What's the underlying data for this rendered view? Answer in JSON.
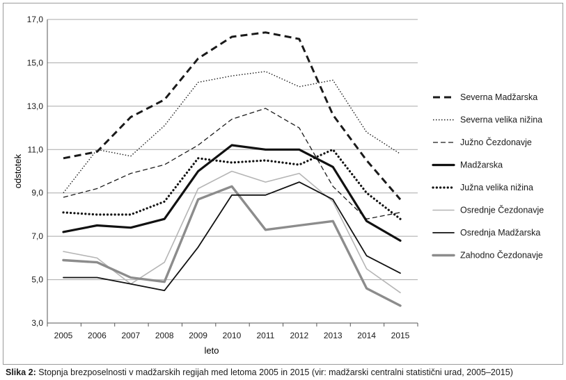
{
  "chart_data": {
    "type": "line",
    "xlabel": "leto",
    "ylabel": "odstotek",
    "ylim": [
      3.0,
      17.0
    ],
    "yticks": [
      "3,0",
      "5,0",
      "7,0",
      "9,0",
      "11,0",
      "13,0",
      "15,0",
      "17,0"
    ],
    "ytick_values": [
      3,
      5,
      7,
      9,
      11,
      13,
      15,
      17
    ],
    "x": [
      "2005",
      "2006",
      "2007",
      "2008",
      "2009",
      "2010",
      "2011",
      "2012",
      "2013",
      "2014",
      "2015"
    ],
    "grid": true,
    "legend_position": "right",
    "series": [
      {
        "name": "Severna Madžarska",
        "style": "dashed-thick",
        "color": "#1a1a1a",
        "values": [
          10.6,
          10.9,
          12.5,
          13.3,
          15.2,
          16.2,
          16.4,
          16.1,
          12.6,
          10.5,
          8.7
        ]
      },
      {
        "name": "Severna velika nižina",
        "style": "dotted-thin",
        "color": "#1a1a1a",
        "values": [
          9.0,
          11.0,
          10.7,
          12.1,
          14.1,
          14.4,
          14.6,
          13.9,
          14.2,
          11.8,
          10.8
        ]
      },
      {
        "name": "Južno Čezdonavje",
        "style": "dashed-thin",
        "color": "#1a1a1a",
        "values": [
          8.8,
          9.2,
          9.9,
          10.3,
          11.2,
          12.4,
          12.9,
          12.0,
          9.3,
          7.8,
          8.1
        ]
      },
      {
        "name": "Madžarska",
        "style": "solid-thick",
        "color": "#111111",
        "values": [
          7.2,
          7.5,
          7.4,
          7.8,
          10.0,
          11.2,
          11.0,
          11.0,
          10.2,
          7.7,
          6.8
        ]
      },
      {
        "name": "Južna velika nižina",
        "style": "dotted-thick",
        "color": "#111111",
        "values": [
          8.1,
          8.0,
          8.0,
          8.6,
          10.6,
          10.4,
          10.5,
          10.3,
          11.0,
          9.0,
          7.8
        ]
      },
      {
        "name": "Osrednje Čezdonavje",
        "style": "solid-light",
        "color": "#b5b5b5",
        "values": [
          6.3,
          6.0,
          4.8,
          5.8,
          9.2,
          10.0,
          9.5,
          9.9,
          8.6,
          5.5,
          4.4
        ]
      },
      {
        "name": "Osrednja Madžarska",
        "style": "solid-medium",
        "color": "#111111",
        "values": [
          5.1,
          5.1,
          4.8,
          4.5,
          6.5,
          8.9,
          8.9,
          9.5,
          8.7,
          6.1,
          5.3
        ]
      },
      {
        "name": "Zahodno Čezdonavje",
        "style": "solid-grey-thick",
        "color": "#8c8c8c",
        "values": [
          5.9,
          5.8,
          5.1,
          4.9,
          8.7,
          9.3,
          7.3,
          7.5,
          7.7,
          4.6,
          3.8
        ]
      }
    ]
  },
  "caption": {
    "label": "Slika 2:",
    "text": " Stopnja brezposelnosti v madžarskih regijah med letoma 2005 in 2015 (vir: madžarski centralni statistični urad, 2005–2015)"
  }
}
